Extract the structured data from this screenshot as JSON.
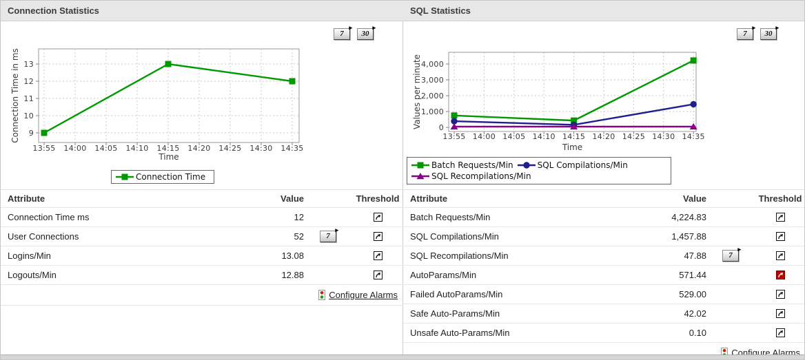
{
  "colors": {
    "series_green": "#009900",
    "series_navy": "#1f1f8f",
    "series_purple": "#880088",
    "alert_red": "#c00000",
    "header_bg": "#e7e7e7"
  },
  "icons": {
    "threshold": "curved-arrow-up-right",
    "threshold_alert": "curved-arrow-up-right-red",
    "configure_alarms": "traffic-light",
    "range_button_arrow": "▸"
  },
  "panels": [
    {
      "title": "Connection Statistics",
      "range_buttons": [
        "7",
        "30"
      ],
      "table": {
        "headers": [
          "Attribute",
          "Value",
          "Threshold"
        ],
        "rows": [
          {
            "attribute": "Connection Time ms",
            "value": "12",
            "range_button": null,
            "threshold": "normal"
          },
          {
            "attribute": "User Connections",
            "value": "52",
            "range_button": "7",
            "threshold": "normal"
          },
          {
            "attribute": "Logins/Min",
            "value": "13.08",
            "range_button": null,
            "threshold": "normal"
          },
          {
            "attribute": "Logouts/Min",
            "value": "12.88",
            "range_button": null,
            "threshold": "normal"
          }
        ],
        "footer_link": "Configure Alarms"
      }
    },
    {
      "title": "SQL Statistics",
      "range_buttons": [
        "7",
        "30"
      ],
      "table": {
        "headers": [
          "Attribute",
          "Value",
          "Threshold"
        ],
        "rows": [
          {
            "attribute": "Batch Requests/Min",
            "value": "4,224.83",
            "range_button": null,
            "threshold": "normal"
          },
          {
            "attribute": "SQL Compilations/Min",
            "value": "1,457.88",
            "range_button": null,
            "threshold": "normal"
          },
          {
            "attribute": "SQL Recompilations/Min",
            "value": "47.88",
            "range_button": "7",
            "threshold": "normal"
          },
          {
            "attribute": "AutoParams/Min",
            "value": "571.44",
            "range_button": null,
            "threshold": "critical"
          },
          {
            "attribute": "Failed AutoParams/Min",
            "value": "529.00",
            "range_button": null,
            "threshold": "normal"
          },
          {
            "attribute": "Safe Auto-Params/Min",
            "value": "42.02",
            "range_button": null,
            "threshold": "normal"
          },
          {
            "attribute": "Unsafe Auto-Params/Min",
            "value": "0.10",
            "range_button": null,
            "threshold": "normal"
          }
        ],
        "footer_link": "Configure Alarms"
      }
    }
  ],
  "chart_data": [
    {
      "type": "line",
      "title": "",
      "xlabel": "Time",
      "ylabel": "Connection Time in ms",
      "x_ticks": [
        "13:55",
        "14:00",
        "14:05",
        "14:10",
        "14:15",
        "14:20",
        "14:25",
        "14:30",
        "14:35"
      ],
      "yticks": [
        9,
        10,
        11,
        12,
        13
      ],
      "ylim": [
        8.44,
        13.88
      ],
      "grid": true,
      "legend_position": "bottom",
      "series": [
        {
          "name": "Connection Time",
          "color": "#009900",
          "marker": "square",
          "x": [
            "13:55",
            "14:15",
            "14:35"
          ],
          "values": [
            9,
            13,
            12
          ]
        }
      ]
    },
    {
      "type": "line",
      "title": "",
      "xlabel": "Time",
      "ylabel": "Values per minute",
      "x_ticks": [
        "13:55",
        "14:00",
        "14:05",
        "14:10",
        "14:15",
        "14:20",
        "14:25",
        "14:30",
        "14:35"
      ],
      "yticks": [
        0,
        1000,
        2000,
        3000,
        4000
      ],
      "ylim": [
        -260,
        4740
      ],
      "grid": true,
      "legend_position": "bottom",
      "series": [
        {
          "name": "Batch Requests/Min",
          "color": "#009900",
          "marker": "square",
          "x": [
            "13:55",
            "14:15",
            "14:35"
          ],
          "values": [
            750,
            430,
            4224.83
          ]
        },
        {
          "name": "SQL Compilations/Min",
          "color": "#1f1f8f",
          "marker": "circle",
          "x": [
            "13:55",
            "14:15",
            "14:35"
          ],
          "values": [
            390,
            160,
            1457.88
          ]
        },
        {
          "name": "SQL Recompilations/Min",
          "color": "#880088",
          "marker": "triangle",
          "x": [
            "13:55",
            "14:15",
            "14:35"
          ],
          "values": [
            48,
            48,
            47.88
          ]
        }
      ]
    }
  ]
}
